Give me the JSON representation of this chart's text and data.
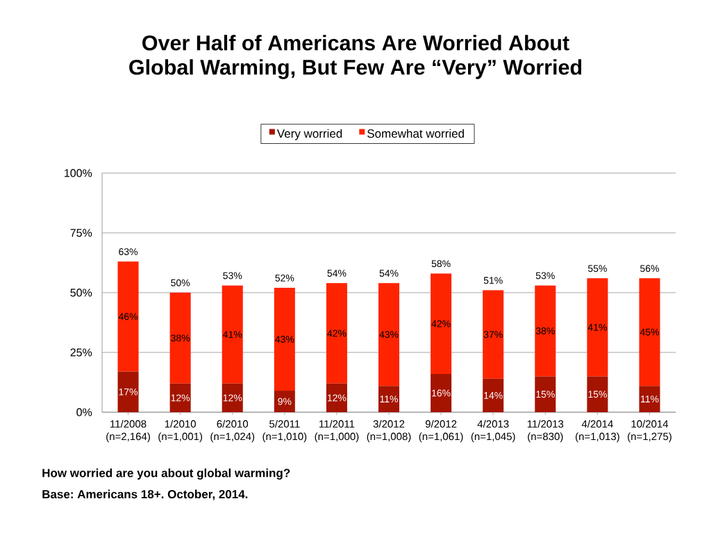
{
  "chart_data": {
    "type": "bar",
    "title": "Over Half of Americans Are Worried About Global Warming, But Few Are “Very” Worried",
    "categories": [
      "11/2008 (n=2,164)",
      "1/2010 (n=1,001)",
      "6/2010 (n=1,024)",
      "5/2011 (n=1,010)",
      "11/2011 (n=1,000)",
      "3/2012 (n=1,008)",
      "9/2012 (n=1,061)",
      "4/2013 (n=1,045)",
      "11/2013 (n=830)",
      "4/2014 (n=1,013)",
      "10/2014 (n=1,275)"
    ],
    "series": [
      {
        "name": "Very worried",
        "color": "#a51400",
        "values": [
          17,
          12,
          12,
          9,
          12,
          11,
          16,
          14,
          15,
          15,
          11
        ],
        "value_labels": [
          "17%",
          "12%",
          "12%",
          "9%",
          "12%",
          "11%",
          "16%",
          "14%",
          "15%",
          "15%",
          "11%"
        ]
      },
      {
        "name": "Somewhat worried",
        "color": "#ff2400",
        "values": [
          46,
          38,
          41,
          43,
          42,
          43,
          42,
          37,
          38,
          41,
          45
        ],
        "value_labels": [
          "46%",
          "38%",
          "41%",
          "43%",
          "42%",
          "43%",
          "42%",
          "37%",
          "38%",
          "41%",
          "45%"
        ]
      }
    ],
    "stacked": true,
    "totals": [
      "63%",
      "50%",
      "53%",
      "52%",
      "54%",
      "54%",
      "58%",
      "51%",
      "53%",
      "55%",
      "56%"
    ],
    "ylim": [
      0,
      100
    ],
    "yticks": [
      {
        "value": 0,
        "label": "0%"
      },
      {
        "value": 25,
        "label": "25%"
      },
      {
        "value": 50,
        "label": "50%"
      },
      {
        "value": 75,
        "label": "75%"
      },
      {
        "value": 100,
        "label": "100%"
      }
    ],
    "grid": "y",
    "legend": "top",
    "annotations": [
      "How worried are you about global warming?",
      "Base: Americans 18+. October, 2014."
    ]
  }
}
